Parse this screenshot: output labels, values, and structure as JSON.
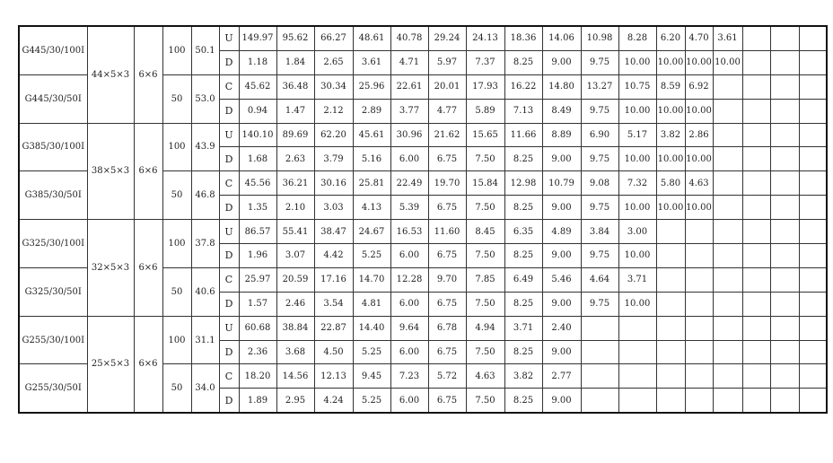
{
  "groups": [
    {
      "size": "44×5×3",
      "mesh": "6×6",
      "models": [
        {
          "name": "G445/30/100I",
          "pitch": "100",
          "weight": "50.1",
          "rows": [
            {
              "type": "U",
              "values": [
                "149.97",
                "95.62",
                "66.27",
                "48.61",
                "40.78",
                "29.24",
                "24.13",
                "18.36",
                "14.06",
                "10.98",
                "8.28",
                "6.20",
                "4.70",
                "3.61"
              ]
            },
            {
              "type": "D",
              "values": [
                "1.18",
                "1.84",
                "2.65",
                "3.61",
                "4.71",
                "5.97",
                "7.37",
                "8.25",
                "9.00",
                "9.75",
                "10.00",
                "10.00",
                "10.00",
                "10.00"
              ]
            }
          ]
        },
        {
          "name": "G445/30/50I",
          "pitch": "50",
          "weight": "53.0",
          "rows": [
            {
              "type": "C",
              "values": [
                "45.62",
                "36.48",
                "30.34",
                "25.96",
                "22.61",
                "20.01",
                "17.93",
                "16.22",
                "14.80",
                "13.27",
                "10.75",
                "8.59",
                "6.92"
              ]
            },
            {
              "type": "D",
              "values": [
                "0.94",
                "1.47",
                "2.12",
                "2.89",
                "3.77",
                "4.77",
                "5.89",
                "7.13",
                "8.49",
                "9.75",
                "10.00",
                "10.00",
                "10.00"
              ]
            }
          ]
        }
      ]
    },
    {
      "size": "38×5×3",
      "mesh": "6×6",
      "models": [
        {
          "name": "G385/30/100I",
          "pitch": "100",
          "weight": "43.9",
          "rows": [
            {
              "type": "U",
              "values": [
                "140.10",
                "89.69",
                "62.20",
                "45.61",
                "30.96",
                "21.62",
                "15.65",
                "11.66",
                "8.89",
                "6.90",
                "5.17",
                "3.82",
                "2.86"
              ]
            },
            {
              "type": "D",
              "values": [
                "1.68",
                "2.63",
                "3.79",
                "5.16",
                "6.00",
                "6.75",
                "7.50",
                "8.25",
                "9.00",
                "9.75",
                "10.00",
                "10.00",
                "10.00"
              ]
            }
          ]
        },
        {
          "name": "G385/30/50I",
          "pitch": "50",
          "weight": "46.8",
          "rows": [
            {
              "type": "C",
              "values": [
                "45.56",
                "36.21",
                "30.16",
                "25.81",
                "22.49",
                "19.70",
                "15.84",
                "12.98",
                "10.79",
                "9.08",
                "7.32",
                "5.80",
                "4.63"
              ]
            },
            {
              "type": "D",
              "values": [
                "1.35",
                "2.10",
                "3.03",
                "4.13",
                "5.39",
                "6.75",
                "7.50",
                "8.25",
                "9.00",
                "9.75",
                "10.00",
                "10.00",
                "10.00"
              ]
            }
          ]
        }
      ]
    },
    {
      "size": "32×5×3",
      "mesh": "6×6",
      "models": [
        {
          "name": "G325/30/100I",
          "pitch": "100",
          "weight": "37.8",
          "rows": [
            {
              "type": "U",
              "values": [
                "86.57",
                "55.41",
                "38.47",
                "24.67",
                "16.53",
                "11.60",
                "8.45",
                "6.35",
                "4.89",
                "3.84",
                "3.00"
              ]
            },
            {
              "type": "D",
              "values": [
                "1.96",
                "3.07",
                "4.42",
                "5.25",
                "6.00",
                "6.75",
                "7.50",
                "8.25",
                "9.00",
                "9.75",
                "10.00"
              ]
            }
          ]
        },
        {
          "name": "G325/30/50I",
          "pitch": "50",
          "weight": "40.6",
          "rows": [
            {
              "type": "C",
              "values": [
                "25.97",
                "20.59",
                "17.16",
                "14.70",
                "12.28",
                "9.70",
                "7.85",
                "6.49",
                "5.46",
                "4.64",
                "3.71"
              ]
            },
            {
              "type": "D",
              "values": [
                "1.57",
                "2.46",
                "3.54",
                "4.81",
                "6.00",
                "6.75",
                "7.50",
                "8.25",
                "9.00",
                "9.75",
                "10.00"
              ]
            }
          ]
        }
      ]
    },
    {
      "size": "25×5×3",
      "mesh": "6×6",
      "models": [
        {
          "name": "G255/30/100I",
          "pitch": "100",
          "weight": "31.1",
          "rows": [
            {
              "type": "U",
              "values": [
                "60.68",
                "38.84",
                "22.87",
                "14.40",
                "9.64",
                "6.78",
                "4.94",
                "3.71",
                "2.40"
              ]
            },
            {
              "type": "D",
              "values": [
                "2.36",
                "3.68",
                "4.50",
                "5.25",
                "6.00",
                "6.75",
                "7.50",
                "8.25",
                "9.00"
              ]
            }
          ]
        },
        {
          "name": "G255/30/50I",
          "pitch": "50",
          "weight": "34.0",
          "rows": [
            {
              "type": "C",
              "values": [
                "18.20",
                "14.56",
                "12.13",
                "9.45",
                "7.23",
                "5.72",
                "4.63",
                "3.82",
                "2.77"
              ]
            },
            {
              "type": "D",
              "values": [
                "1.89",
                "2.95",
                "4.24",
                "5.25",
                "6.00",
                "6.75",
                "7.50",
                "8.25",
                "9.00"
              ]
            }
          ]
        }
      ]
    }
  ]
}
